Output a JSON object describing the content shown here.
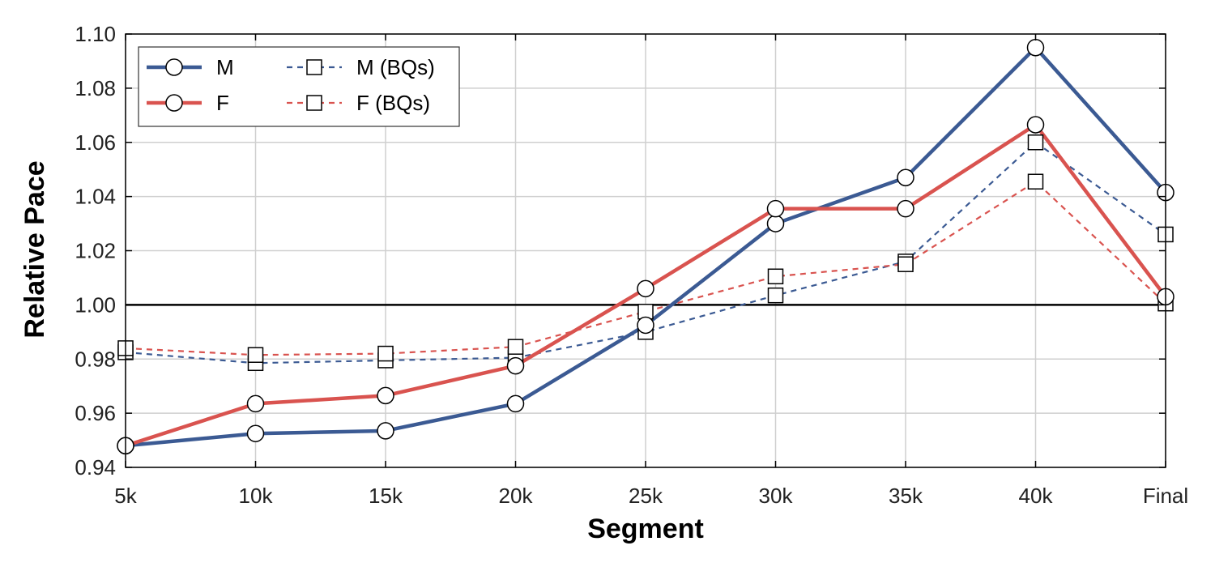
{
  "chart_data": {
    "type": "line",
    "title": "",
    "xlabel": "Segment",
    "ylabel": "Relative Pace",
    "categories": [
      "5k",
      "10k",
      "15k",
      "20k",
      "25k",
      "30k",
      "35k",
      "40k",
      "Final"
    ],
    "ylim": [
      0.94,
      1.1
    ],
    "yticks": [
      "0.94",
      "0.96",
      "0.98",
      "1.00",
      "1.02",
      "1.04",
      "1.06",
      "1.08",
      "1.10"
    ],
    "reference_line": 1.0,
    "grid": true,
    "legend_position": "top-left",
    "series": [
      {
        "name": "M",
        "color": "#3b5a93",
        "style": "solid",
        "marker": "circle",
        "values": [
          0.948,
          0.9525,
          0.9535,
          0.9635,
          0.9925,
          1.03,
          1.047,
          1.095,
          1.0415
        ]
      },
      {
        "name": "F",
        "color": "#d9534f",
        "style": "solid",
        "marker": "circle",
        "values": [
          0.948,
          0.9635,
          0.9665,
          0.9775,
          1.006,
          1.0355,
          1.0355,
          1.0665,
          1.003
        ]
      },
      {
        "name": "M (BQs)",
        "color": "#3b5a93",
        "style": "dashed",
        "marker": "square",
        "values": [
          0.9825,
          0.9785,
          0.9795,
          0.9805,
          0.99,
          1.0035,
          1.016,
          1.06,
          1.026
        ]
      },
      {
        "name": "F (BQs)",
        "color": "#d9534f",
        "style": "dashed",
        "marker": "square",
        "values": [
          0.984,
          0.9815,
          0.982,
          0.9845,
          0.9975,
          1.0105,
          1.015,
          1.0455,
          1.0005
        ]
      }
    ]
  }
}
